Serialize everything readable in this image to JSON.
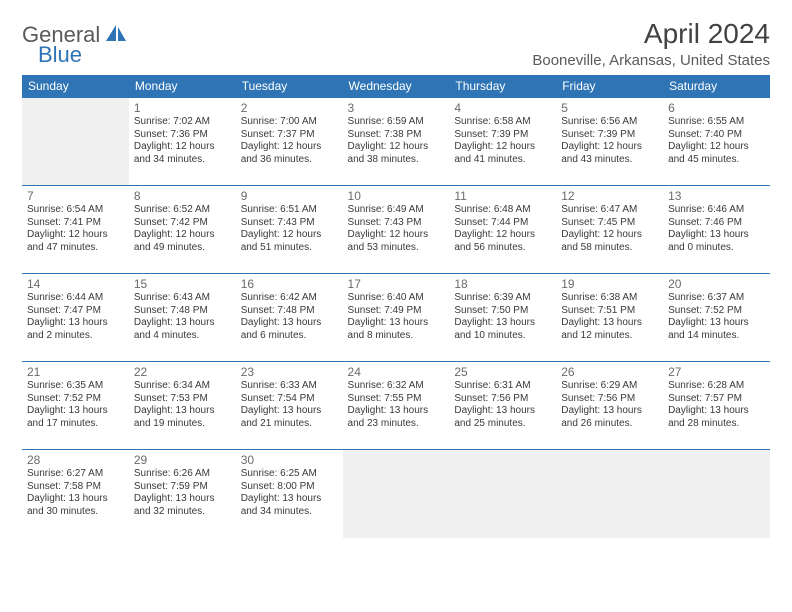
{
  "logo": {
    "text1": "General",
    "text2": "Blue"
  },
  "title": "April 2024",
  "location": "Booneville, Arkansas, United States",
  "colors": {
    "accent": "#2f74b5",
    "header_text": "#ffffff",
    "body_text": "#3a3a3a",
    "muted": "#6a6a6a",
    "logo_gray": "#5a5a5a",
    "empty_bg": "#f0f0f0",
    "bg": "#ffffff"
  },
  "day_headers": [
    "Sunday",
    "Monday",
    "Tuesday",
    "Wednesday",
    "Thursday",
    "Friday",
    "Saturday"
  ],
  "weeks": [
    [
      null,
      {
        "n": "1",
        "sr": "7:02 AM",
        "ss": "7:36 PM",
        "dl": "12 hours and 34 minutes."
      },
      {
        "n": "2",
        "sr": "7:00 AM",
        "ss": "7:37 PM",
        "dl": "12 hours and 36 minutes."
      },
      {
        "n": "3",
        "sr": "6:59 AM",
        "ss": "7:38 PM",
        "dl": "12 hours and 38 minutes."
      },
      {
        "n": "4",
        "sr": "6:58 AM",
        "ss": "7:39 PM",
        "dl": "12 hours and 41 minutes."
      },
      {
        "n": "5",
        "sr": "6:56 AM",
        "ss": "7:39 PM",
        "dl": "12 hours and 43 minutes."
      },
      {
        "n": "6",
        "sr": "6:55 AM",
        "ss": "7:40 PM",
        "dl": "12 hours and 45 minutes."
      }
    ],
    [
      {
        "n": "7",
        "sr": "6:54 AM",
        "ss": "7:41 PM",
        "dl": "12 hours and 47 minutes."
      },
      {
        "n": "8",
        "sr": "6:52 AM",
        "ss": "7:42 PM",
        "dl": "12 hours and 49 minutes."
      },
      {
        "n": "9",
        "sr": "6:51 AM",
        "ss": "7:43 PM",
        "dl": "12 hours and 51 minutes."
      },
      {
        "n": "10",
        "sr": "6:49 AM",
        "ss": "7:43 PM",
        "dl": "12 hours and 53 minutes."
      },
      {
        "n": "11",
        "sr": "6:48 AM",
        "ss": "7:44 PM",
        "dl": "12 hours and 56 minutes."
      },
      {
        "n": "12",
        "sr": "6:47 AM",
        "ss": "7:45 PM",
        "dl": "12 hours and 58 minutes."
      },
      {
        "n": "13",
        "sr": "6:46 AM",
        "ss": "7:46 PM",
        "dl": "13 hours and 0 minutes."
      }
    ],
    [
      {
        "n": "14",
        "sr": "6:44 AM",
        "ss": "7:47 PM",
        "dl": "13 hours and 2 minutes."
      },
      {
        "n": "15",
        "sr": "6:43 AM",
        "ss": "7:48 PM",
        "dl": "13 hours and 4 minutes."
      },
      {
        "n": "16",
        "sr": "6:42 AM",
        "ss": "7:48 PM",
        "dl": "13 hours and 6 minutes."
      },
      {
        "n": "17",
        "sr": "6:40 AM",
        "ss": "7:49 PM",
        "dl": "13 hours and 8 minutes."
      },
      {
        "n": "18",
        "sr": "6:39 AM",
        "ss": "7:50 PM",
        "dl": "13 hours and 10 minutes."
      },
      {
        "n": "19",
        "sr": "6:38 AM",
        "ss": "7:51 PM",
        "dl": "13 hours and 12 minutes."
      },
      {
        "n": "20",
        "sr": "6:37 AM",
        "ss": "7:52 PM",
        "dl": "13 hours and 14 minutes."
      }
    ],
    [
      {
        "n": "21",
        "sr": "6:35 AM",
        "ss": "7:52 PM",
        "dl": "13 hours and 17 minutes."
      },
      {
        "n": "22",
        "sr": "6:34 AM",
        "ss": "7:53 PM",
        "dl": "13 hours and 19 minutes."
      },
      {
        "n": "23",
        "sr": "6:33 AM",
        "ss": "7:54 PM",
        "dl": "13 hours and 21 minutes."
      },
      {
        "n": "24",
        "sr": "6:32 AM",
        "ss": "7:55 PM",
        "dl": "13 hours and 23 minutes."
      },
      {
        "n": "25",
        "sr": "6:31 AM",
        "ss": "7:56 PM",
        "dl": "13 hours and 25 minutes."
      },
      {
        "n": "26",
        "sr": "6:29 AM",
        "ss": "7:56 PM",
        "dl": "13 hours and 26 minutes."
      },
      {
        "n": "27",
        "sr": "6:28 AM",
        "ss": "7:57 PM",
        "dl": "13 hours and 28 minutes."
      }
    ],
    [
      {
        "n": "28",
        "sr": "6:27 AM",
        "ss": "7:58 PM",
        "dl": "13 hours and 30 minutes."
      },
      {
        "n": "29",
        "sr": "6:26 AM",
        "ss": "7:59 PM",
        "dl": "13 hours and 32 minutes."
      },
      {
        "n": "30",
        "sr": "6:25 AM",
        "ss": "8:00 PM",
        "dl": "13 hours and 34 minutes."
      },
      null,
      null,
      null,
      null
    ]
  ],
  "labels": {
    "sunrise": "Sunrise:",
    "sunset": "Sunset:",
    "daylight": "Daylight:"
  }
}
